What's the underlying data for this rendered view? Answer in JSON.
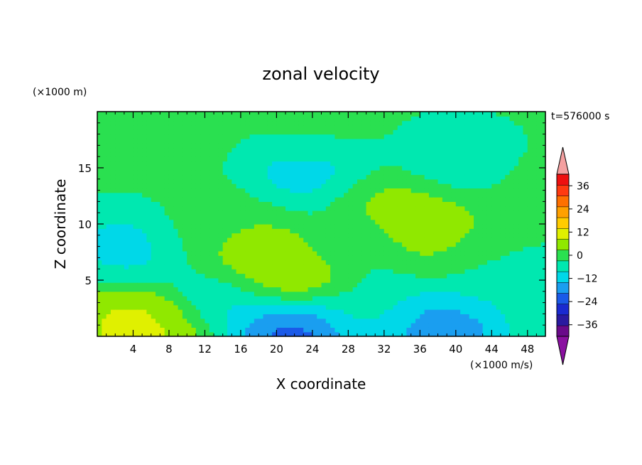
{
  "chart_data": {
    "type": "heatmap",
    "title": "zonal velocity",
    "xlabel": "X coordinate",
    "ylabel": "Z coordinate",
    "x_unit": "(×1000 m/s)",
    "y_unit": "(×1000 m)",
    "time_label": "t=576000 s",
    "xlim": [
      0,
      50
    ],
    "ylim": [
      0,
      20
    ],
    "x_ticks": [
      4,
      8,
      12,
      16,
      20,
      24,
      28,
      32,
      36,
      40,
      44,
      48
    ],
    "y_ticks": [
      5,
      10,
      15
    ],
    "colorbar": {
      "levels": [
        -42,
        -36,
        -30,
        -24,
        -18,
        -12,
        -6,
        0,
        6,
        12,
        18,
        24,
        30,
        36,
        42
      ],
      "tick_labels": [
        "36",
        "24",
        "12",
        "0",
        "−12",
        "−24",
        "−36"
      ],
      "tick_values": [
        36,
        24,
        12,
        0,
        -12,
        -24,
        -36
      ],
      "colors": [
        "#6a0a8a",
        "#2a1aa0",
        "#1a2ad0",
        "#1a5ae8",
        "#1a9ef0",
        "#00d8e8",
        "#00e8b0",
        "#2ae050",
        "#90e800",
        "#e0f000",
        "#ffcc00",
        "#ffa000",
        "#ff7000",
        "#ff3a10",
        "#ee1010"
      ],
      "under_color": "#8a10a0",
      "over_color": "#f4a0a0"
    },
    "features": [
      {
        "x": 0,
        "z": 0,
        "value": 1
      },
      {
        "x": 18,
        "z": 7,
        "value": 11
      },
      {
        "x": 22,
        "z": 5.5,
        "value": 16
      },
      {
        "x": 13,
        "z": 9.5,
        "value": 5
      },
      {
        "x": 36,
        "z": 10,
        "value": 16
      },
      {
        "x": 33,
        "z": 12,
        "value": 8
      },
      {
        "x": 42,
        "z": 8,
        "value": 4
      },
      {
        "x": 4,
        "z": 1,
        "value": 14
      },
      {
        "x": 6,
        "z": 0.8,
        "value": 16
      },
      {
        "x": 22,
        "z": 0.5,
        "value": -26
      },
      {
        "x": 38,
        "z": 0.6,
        "value": -20
      },
      {
        "x": 30,
        "z": 2.5,
        "value": -4
      },
      {
        "x": 14,
        "z": 3,
        "value": -9
      },
      {
        "x": 4,
        "z": 8,
        "value": -10
      },
      {
        "x": 24,
        "z": 15,
        "value": -11
      },
      {
        "x": 40,
        "z": 15.5,
        "value": -8
      },
      {
        "x": 7,
        "z": 18.5,
        "value": 3
      },
      {
        "x": 25,
        "z": 18.5,
        "value": 3
      },
      {
        "x": 46,
        "z": 14,
        "value": 2
      },
      {
        "x": 29,
        "z": 8,
        "value": -3
      },
      {
        "x": 46,
        "z": 5,
        "value": -6
      }
    ]
  }
}
